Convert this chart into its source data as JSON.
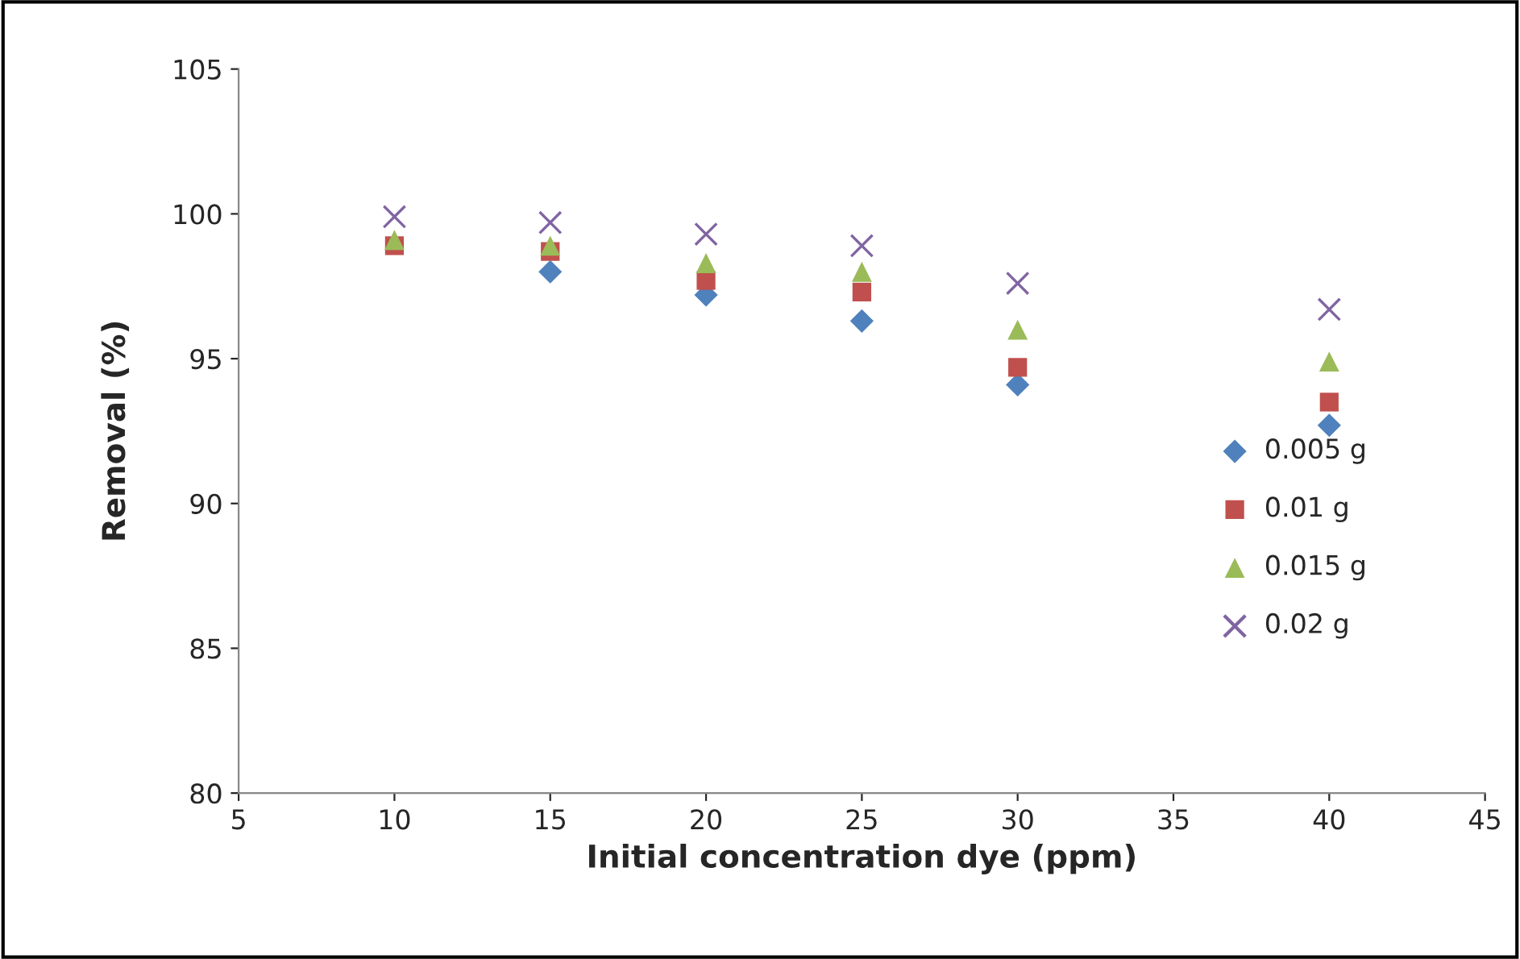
{
  "chart_data": {
    "type": "scatter",
    "xlabel": "Initial concentration dye (ppm)",
    "ylabel": "Removal (%)",
    "x": [
      10,
      15,
      20,
      25,
      30,
      40
    ],
    "series": [
      {
        "name": "0.005 g",
        "color": "#4f81bd",
        "marker": "diamond",
        "values": [
          null,
          98.0,
          97.2,
          96.3,
          94.1,
          92.7
        ]
      },
      {
        "name": "0.01 g",
        "color": "#c0504d",
        "marker": "square",
        "values": [
          98.9,
          98.7,
          97.7,
          97.3,
          94.7,
          93.5
        ]
      },
      {
        "name": "0.015 g",
        "color": "#9bbb59",
        "marker": "triangle",
        "values": [
          99.1,
          98.9,
          98.3,
          98.0,
          96.0,
          94.9
        ]
      },
      {
        "name": "0.02 g",
        "color": "#8064a2",
        "marker": "cross",
        "values": [
          99.9,
          99.7,
          99.3,
          98.9,
          97.6,
          96.7
        ]
      }
    ],
    "xlim": [
      5,
      45
    ],
    "xticks": [
      5,
      10,
      15,
      20,
      25,
      30,
      35,
      40,
      45
    ],
    "ylim": [
      80,
      105
    ],
    "yticks": [
      80,
      85,
      90,
      95,
      100,
      105
    ],
    "grid": false,
    "legend": "right"
  }
}
